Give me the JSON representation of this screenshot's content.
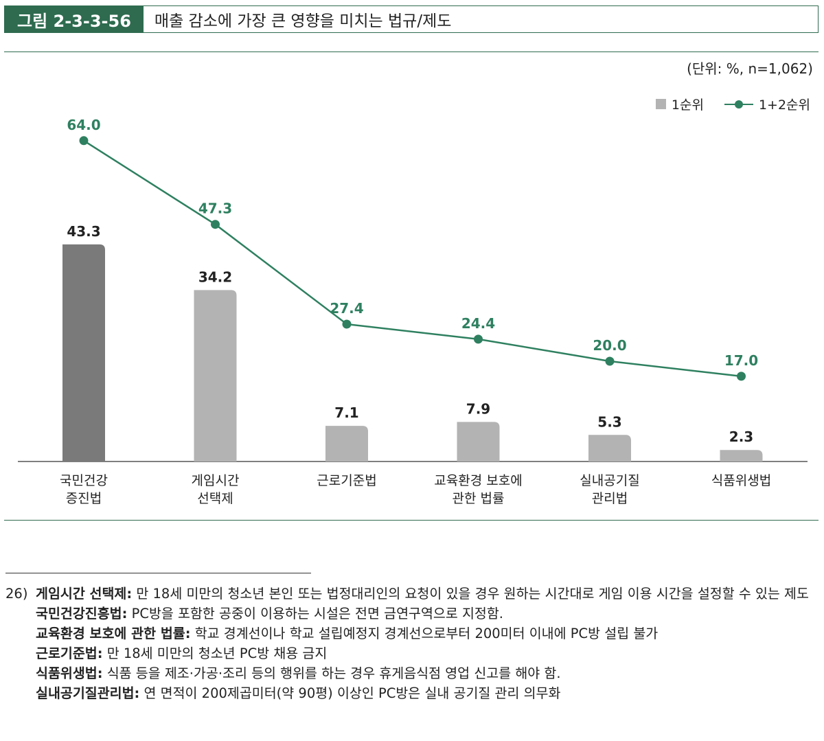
{
  "figure": {
    "label": "그림 2-3-3-56",
    "title": "매출 감소에 가장 큰 영향을 미치는 법규/제도",
    "unit": "(단위: %, n=1,062)"
  },
  "colors": {
    "accent": "#2e6b4f",
    "line": "#2e8060",
    "bar": "#b3b3b3",
    "bar_highlight": "#7a7a7a"
  },
  "chart_data": {
    "type": "bar",
    "categories": [
      [
        "국민건강",
        "증진법"
      ],
      [
        "게임시간",
        "선택제"
      ],
      [
        "근로기준법"
      ],
      [
        "교육환경 보호에",
        "관한 법률"
      ],
      [
        "실내공기질",
        "관리법"
      ],
      [
        "식품위생법"
      ]
    ],
    "series": [
      {
        "name": "1순위",
        "type": "bar",
        "values": [
          43.3,
          34.2,
          7.1,
          7.9,
          5.3,
          2.3
        ],
        "labels": [
          "43.3",
          "34.2",
          "7.1",
          "7.9",
          "5.3",
          "2.3"
        ]
      },
      {
        "name": "1+2순위",
        "type": "line",
        "values": [
          64.0,
          47.3,
          27.4,
          24.4,
          20.0,
          17.0
        ],
        "labels": [
          "64.0",
          "47.3",
          "27.4",
          "24.4",
          "20.0",
          "17.0"
        ]
      }
    ],
    "ylim": [
      0,
      80
    ],
    "legend": [
      "1순위",
      "1+2순위"
    ],
    "legend_position": "top-right"
  },
  "notes": {
    "number": "26)",
    "items": [
      {
        "term": "게임시간 선택제:",
        "text": " 만 18세 미만의 청소년 본인 또는 법정대리인의 요청이 있을 경우 원하는 시간대로 게임 이용 시간을 설정할 수 있는 제도"
      },
      {
        "term": "국민건강진흥법:",
        "text": " PC방을 포함한 공중이 이용하는 시설은 전면 금연구역으로 지정함."
      },
      {
        "term": "교육환경 보호에 관한 법률:",
        "text": " 학교 경계선이나 학교 설립예정지 경계선으로부터 200미터 이내에 PC방 설립 불가"
      },
      {
        "term": "근로기준법:",
        "text": " 만 18세 미만의 청소년 PC방 채용 금지"
      },
      {
        "term": "식품위생법:",
        "text": " 식품 등을 제조·가공·조리 등의 행위를 하는 경우 휴게음식점 영업 신고를 해야 함."
      },
      {
        "term": "실내공기질관리법:",
        "text": " 연 면적이 200제곱미터(약 90평) 이상인 PC방은 실내 공기질 관리 의무화"
      }
    ]
  }
}
